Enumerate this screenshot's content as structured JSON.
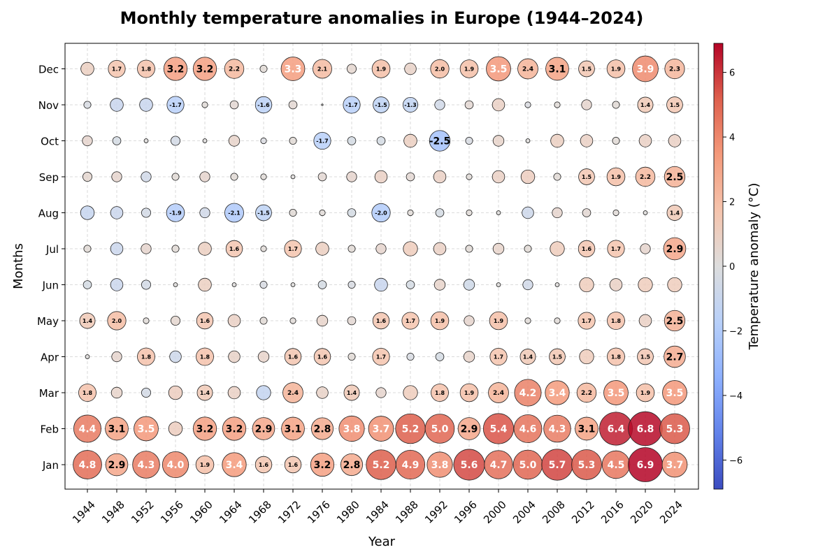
{
  "chart_data": {
    "type": "scatter",
    "title": "Monthly temperature anomalies in Europe (1944–2024)",
    "xlabel": "Year",
    "ylabel": "Months",
    "colorbar_label": "Temperature anomaly (°C)",
    "colormap": "coolwarm",
    "color_range": [
      -6.9,
      6.9
    ],
    "colorbar_ticks": [
      -6,
      -4,
      -2,
      0,
      2,
      4,
      6
    ],
    "colorbar_tick_labels": [
      "−6",
      "−4",
      "−2",
      "0",
      "2",
      "4",
      "6"
    ],
    "grid": true,
    "legend": "none",
    "years": [
      1944,
      1948,
      1952,
      1956,
      1960,
      1964,
      1968,
      1972,
      1976,
      1980,
      1984,
      1988,
      1992,
      1996,
      2000,
      2004,
      2008,
      2012,
      2016,
      2020,
      2024
    ],
    "months": [
      "Jan",
      "Feb",
      "Mar",
      "Apr",
      "May",
      "Jun",
      "Jul",
      "Aug",
      "Sep",
      "Oct",
      "Nov",
      "Dec"
    ],
    "values": [
      [
        4.8,
        2.9,
        4.3,
        4.0,
        1.9,
        3.4,
        1.6,
        1.6,
        3.2,
        2.8,
        5.2,
        4.9,
        3.8,
        5.6,
        4.7,
        5.0,
        5.7,
        5.3,
        4.5,
        6.9,
        3.7
      ],
      [
        4.4,
        3.1,
        3.5,
        1.1,
        3.2,
        3.2,
        2.9,
        3.1,
        2.8,
        3.8,
        3.7,
        5.2,
        5.0,
        2.9,
        5.4,
        4.6,
        4.3,
        3.1,
        6.4,
        6.8,
        5.3
      ],
      [
        1.8,
        0.7,
        -0.5,
        1.1,
        1.4,
        0.9,
        -1.2,
        2.4,
        0.8,
        1.4,
        0.6,
        1.2,
        1.8,
        1.9,
        2.4,
        4.2,
        3.4,
        2.2,
        3.5,
        1.9,
        3.5
      ],
      [
        0.1,
        0.6,
        1.8,
        -0.8,
        1.8,
        0.8,
        0.7,
        1.6,
        1.6,
        0.3,
        1.7,
        -0.3,
        -0.4,
        0.7,
        1.7,
        1.4,
        1.5,
        1.2,
        1.8,
        1.5,
        2.7
      ],
      [
        1.4,
        2.0,
        0.2,
        0.5,
        1.6,
        0.9,
        0.3,
        0.2,
        0.7,
        0.4,
        1.6,
        1.7,
        1.9,
        0.6,
        1.9,
        0.2,
        0.2,
        1.7,
        1.8,
        0.9,
        2.5
      ],
      [
        -0.4,
        -0.9,
        -0.5,
        0.1,
        1.0,
        0.1,
        -0.3,
        0.1,
        -0.4,
        -0.3,
        -1.0,
        -0.4,
        0.7,
        -0.7,
        0.1,
        -0.6,
        0.1,
        1.2,
        0.9,
        1.2,
        1.2
      ],
      [
        0.3,
        -0.9,
        0.6,
        0.3,
        1.0,
        1.6,
        0.2,
        1.7,
        1.0,
        0.3,
        0.6,
        1.2,
        0.9,
        0.3,
        0.7,
        0.3,
        1.2,
        1.6,
        1.7,
        0.6,
        2.9
      ],
      [
        -1.1,
        -0.9,
        -0.5,
        -1.9,
        -0.6,
        -2.1,
        -1.5,
        0.3,
        0.2,
        -0.4,
        -2.0,
        0.2,
        -0.4,
        0.2,
        0.1,
        -0.8,
        0.6,
        0.4,
        0.2,
        0.1,
        1.4
      ],
      [
        0.5,
        0.6,
        -0.6,
        0.3,
        0.6,
        0.3,
        0.2,
        0.1,
        0.4,
        0.6,
        0.9,
        0.4,
        0.9,
        0.2,
        0.9,
        1.1,
        0.3,
        1.5,
        1.9,
        2.2,
        2.5
      ],
      [
        0.6,
        -0.4,
        0.1,
        -0.5,
        0.1,
        0.7,
        -0.2,
        0.3,
        -1.7,
        -0.4,
        -0.4,
        1.0,
        -2.5,
        -0.3,
        0.7,
        0.1,
        1.0,
        0.9,
        0.3,
        0.9,
        0.9
      ],
      [
        -0.3,
        -1.0,
        -1.0,
        -1.7,
        0.2,
        0.4,
        -1.6,
        0.4,
        0.01,
        -1.7,
        -1.5,
        -1.3,
        -0.6,
        0.4,
        0.9,
        -0.2,
        0.2,
        0.6,
        0.3,
        1.4,
        1.5
      ],
      [
        1.0,
        1.7,
        1.8,
        3.2,
        3.2,
        2.2,
        0.3,
        3.3,
        2.1,
        0.5,
        1.9,
        0.8,
        2.0,
        1.9,
        3.5,
        2.4,
        3.1,
        1.5,
        1.9,
        3.9,
        2.3
      ]
    ],
    "ylim": [
      "Jan",
      "Dec"
    ],
    "xlim": [
      1940,
      2028
    ]
  }
}
